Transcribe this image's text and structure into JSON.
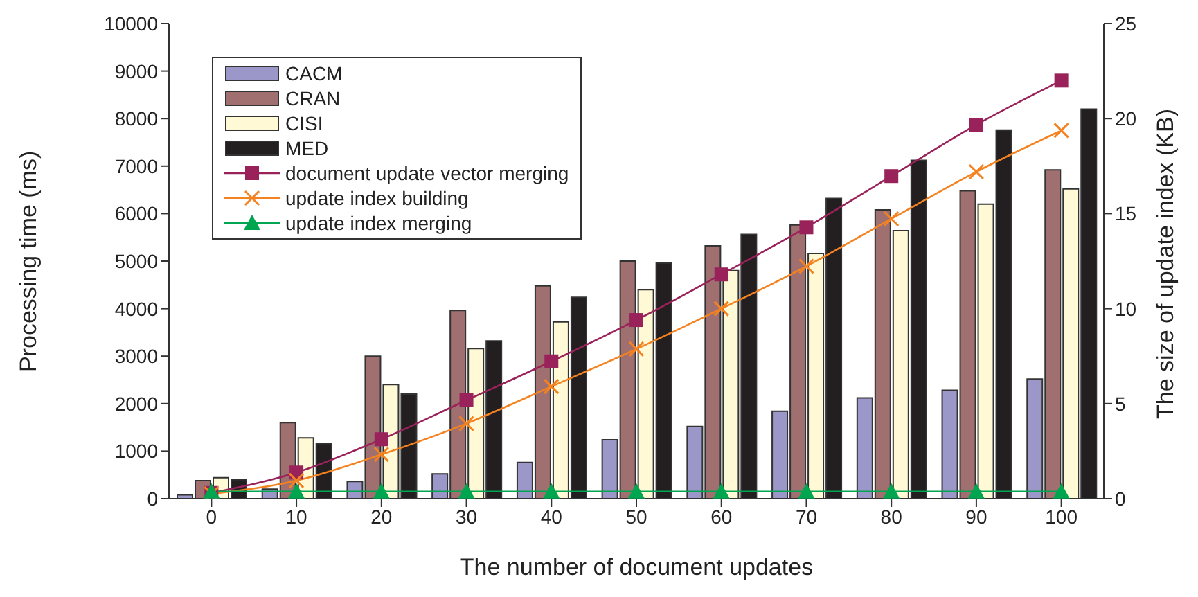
{
  "chart_data": {
    "type": "bar",
    "xlabel": "The number of document updates",
    "ylabel": "Processing time (ms)",
    "y2label": "The size of update index (KB)",
    "categories": [
      "0",
      "10",
      "20",
      "30",
      "40",
      "50",
      "60",
      "70",
      "80",
      "90",
      "100"
    ],
    "ylim": [
      0,
      10000
    ],
    "yticks": [
      0,
      1000,
      2000,
      3000,
      4000,
      5000,
      6000,
      7000,
      8000,
      9000,
      10000
    ],
    "y2lim": [
      0,
      25
    ],
    "y2ticks": [
      0,
      5,
      10,
      15,
      20,
      25
    ],
    "legend": "top left",
    "grid": false,
    "series": [
      {
        "name": "CACM",
        "color": "#9b97c9",
        "axis": "y2",
        "values": [
          0.2,
          0.5,
          0.9,
          1.3,
          1.9,
          3.1,
          3.8,
          4.6,
          5.3,
          5.7,
          6.3
        ]
      },
      {
        "name": "CRAN",
        "color": "#a07070",
        "axis": "y2",
        "values": [
          0.95,
          4.0,
          7.5,
          9.9,
          11.2,
          12.5,
          13.3,
          14.4,
          15.2,
          16.2,
          17.3
        ]
      },
      {
        "name": "CISI",
        "color": "#fff9d6",
        "axis": "y2",
        "values": [
          1.1,
          3.2,
          6.0,
          7.9,
          9.3,
          11.0,
          12.0,
          12.9,
          14.1,
          15.5,
          16.3
        ]
      },
      {
        "name": "MED",
        "color": "#231f20",
        "axis": "y2",
        "values": [
          1.0,
          2.9,
          5.5,
          8.3,
          10.6,
          12.4,
          13.9,
          15.8,
          17.8,
          19.4,
          20.5
        ]
      },
      {
        "name": "document update vector merging",
        "type": "line",
        "color": "#99225a",
        "marker": "square",
        "values": [
          120,
          550,
          1250,
          2070,
          2890,
          3760,
          4720,
          5710,
          6790,
          7870,
          8800
        ]
      },
      {
        "name": "update index building",
        "type": "line",
        "color": "#f58220",
        "marker": "cross",
        "values": [
          100,
          380,
          930,
          1580,
          2360,
          3150,
          4000,
          4890,
          5890,
          6880,
          7750
        ]
      },
      {
        "name": "update index merging",
        "type": "line",
        "color": "#00a550",
        "marker": "triangle",
        "values": [
          150,
          150,
          150,
          150,
          150,
          150,
          150,
          150,
          150,
          150,
          150
        ]
      }
    ]
  }
}
